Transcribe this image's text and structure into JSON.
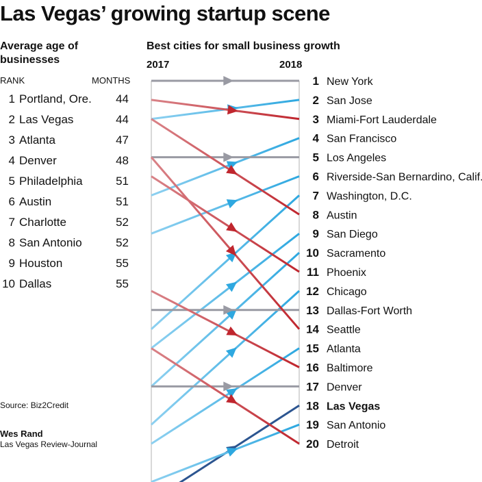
{
  "title": "Las Vegas’ growing startup scene",
  "left_panel": {
    "title": "Average age of businesses",
    "col_rank": "RANK",
    "col_months": "MONTHS",
    "rows": [
      {
        "rank": "1",
        "city": "Portland, Ore.",
        "months": "44"
      },
      {
        "rank": "2",
        "city": "Las Vegas",
        "months": "44"
      },
      {
        "rank": "3",
        "city": "Atlanta",
        "months": "47"
      },
      {
        "rank": "4",
        "city": "Denver",
        "months": "48"
      },
      {
        "rank": "5",
        "city": "Philadelphia",
        "months": "51"
      },
      {
        "rank": "6",
        "city": "Austin",
        "months": "51"
      },
      {
        "rank": "7",
        "city": "Charlotte",
        "months": "52"
      },
      {
        "rank": "8",
        "city": "San Antonio",
        "months": "52"
      },
      {
        "rank": "9",
        "city": "Houston",
        "months": "55"
      },
      {
        "rank": "10",
        "city": "Dallas",
        "months": "55"
      }
    ]
  },
  "source": "Source: Biz2Credit",
  "credit": {
    "name": "Wes Rand",
    "org": "Las Vegas Review-Journal"
  },
  "colors": {
    "up": "#2ea8e0",
    "up_light": "#8dd0f0",
    "down": "#c0262e",
    "down_light": "#d98388",
    "same": "#999aa3",
    "highlight": "#2c5590",
    "axis": "#cccccc"
  },
  "chart_data": {
    "type": "slope",
    "title": "Best cities for small business growth",
    "x_labels": [
      "2017",
      "2018"
    ],
    "series": [
      {
        "city": "New York",
        "rank_2017": 1,
        "rank_2018": 1
      },
      {
        "city": "San Jose",
        "rank_2017": 3,
        "rank_2018": 2
      },
      {
        "city": "Miami-Fort Lauderdale",
        "rank_2017": 2,
        "rank_2018": 3
      },
      {
        "city": "San Francisco",
        "rank_2017": 7,
        "rank_2018": 4
      },
      {
        "city": "Los Angeles",
        "rank_2017": 5,
        "rank_2018": 5
      },
      {
        "city": "Riverside-San Bernardino, Calif.",
        "rank_2017": 9,
        "rank_2018": 6
      },
      {
        "city": "Washington, D.C.",
        "rank_2017": 14,
        "rank_2018": 7
      },
      {
        "city": "Austin",
        "rank_2017": 3,
        "rank_2018": 8
      },
      {
        "city": "San Diego",
        "rank_2017": 15,
        "rank_2018": 9
      },
      {
        "city": "Sacramento",
        "rank_2017": 17,
        "rank_2018": 10
      },
      {
        "city": "Phoenix",
        "rank_2017": 6,
        "rank_2018": 11
      },
      {
        "city": "Chicago",
        "rank_2017": 19,
        "rank_2018": 12
      },
      {
        "city": "Dallas-Fort Worth",
        "rank_2017": 13,
        "rank_2018": 13
      },
      {
        "city": "Seattle",
        "rank_2017": 5,
        "rank_2018": 14
      },
      {
        "city": "Atlanta",
        "rank_2017": 20,
        "rank_2018": 15
      },
      {
        "city": "Baltimore",
        "rank_2017": 12,
        "rank_2018": 16
      },
      {
        "city": "Denver",
        "rank_2017": 17,
        "rank_2018": 17
      },
      {
        "city": "Las Vegas",
        "rank_2017": 23,
        "rank_2018": 18
      },
      {
        "city": "San Antonio",
        "rank_2017": 22,
        "rank_2018": 19
      },
      {
        "city": "Detroit",
        "rank_2017": 15,
        "rank_2018": 20
      }
    ]
  }
}
